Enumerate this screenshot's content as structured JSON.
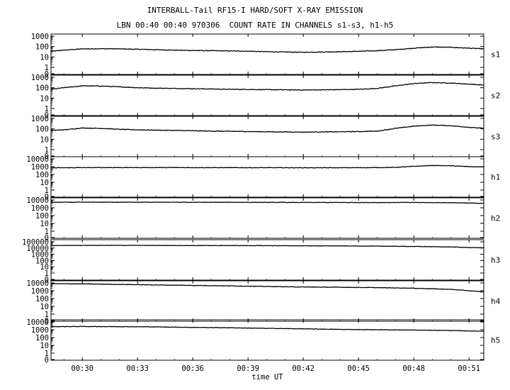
{
  "title_line1": "INTERBALL-Tail RF15-I HARD/SOFT X-RAY EMISSION",
  "title_line2": "LBN 00:40 00:40 970306  COUNT RATE IN CHANNELS s1-s3, h1-h5",
  "chart_data": {
    "type": "line",
    "xlabel": "time UT",
    "x_ticks": [
      "00:30",
      "00:33",
      "00:36",
      "00:39",
      "00:42",
      "00:45",
      "00:48",
      "00:51"
    ],
    "x_tick_minutes": [
      30,
      33,
      36,
      39,
      42,
      45,
      48,
      51
    ],
    "xlim_minutes": [
      28.3,
      51.8
    ],
    "yscale": "log",
    "grid": false,
    "panels": [
      {
        "name": "s1",
        "y_ticks": [
          "1000",
          "100",
          "10",
          "1",
          "0"
        ],
        "y_decades": 3,
        "x": [
          28.3,
          29,
          30,
          31,
          32,
          33,
          34,
          35,
          36,
          37,
          38,
          39,
          40,
          41,
          42,
          43,
          44,
          45,
          46,
          47,
          48,
          49,
          50,
          51,
          51.8
        ],
        "y": [
          35,
          45,
          60,
          62,
          60,
          55,
          50,
          45,
          42,
          40,
          38,
          36,
          32,
          30,
          28,
          30,
          32,
          35,
          40,
          50,
          70,
          90,
          85,
          70,
          60
        ]
      },
      {
        "name": "s2",
        "y_ticks": [
          "1000",
          "100",
          "10",
          "1",
          "0"
        ],
        "y_decades": 3,
        "x": [
          28.3,
          29,
          30,
          31,
          32,
          33,
          34,
          35,
          36,
          37,
          38,
          39,
          40,
          41,
          42,
          43,
          44,
          45,
          46,
          47,
          48,
          49,
          50,
          51,
          51.8
        ],
        "y": [
          70,
          100,
          150,
          145,
          120,
          100,
          90,
          85,
          80,
          75,
          70,
          68,
          65,
          62,
          60,
          62,
          65,
          70,
          85,
          150,
          250,
          310,
          280,
          220,
          180
        ]
      },
      {
        "name": "s3",
        "y_ticks": [
          "1000",
          "100",
          "10",
          "1",
          "0"
        ],
        "y_decades": 3,
        "x": [
          28.3,
          29,
          30,
          31,
          32,
          33,
          34,
          35,
          36,
          37,
          38,
          39,
          40,
          41,
          42,
          43,
          44,
          45,
          46,
          47,
          48,
          49,
          50,
          51,
          51.8
        ],
        "y": [
          70,
          80,
          120,
          110,
          90,
          80,
          75,
          70,
          65,
          60,
          58,
          55,
          52,
          50,
          48,
          50,
          52,
          55,
          60,
          110,
          180,
          230,
          200,
          140,
          110
        ]
      },
      {
        "name": "h1",
        "y_ticks": [
          "10000",
          "1000",
          "100",
          "10",
          "1",
          "0"
        ],
        "y_decades": 4,
        "x": [
          28.3,
          30,
          32,
          34,
          36,
          38,
          40,
          42,
          44,
          46,
          47,
          48,
          49,
          50,
          51,
          51.8
        ],
        "y": [
          700,
          750,
          760,
          760,
          750,
          740,
          730,
          720,
          720,
          750,
          800,
          1100,
          1400,
          1300,
          1000,
          900
        ]
      },
      {
        "name": "h2",
        "y_ticks": [
          "10000",
          "1000",
          "100",
          "10",
          "1",
          "0"
        ],
        "y_decades": 4,
        "x": [
          28.3,
          30,
          32,
          34,
          36,
          38,
          40,
          42,
          44,
          46,
          48,
          50,
          51,
          51.8
        ],
        "y": [
          5000,
          5200,
          5200,
          5100,
          5000,
          5000,
          4900,
          4800,
          4800,
          4700,
          4800,
          4500,
          4000,
          3800
        ]
      },
      {
        "name": "h3",
        "y_ticks": [
          "100000",
          "10000",
          "1000",
          "100",
          "10",
          "1",
          "0"
        ],
        "y_decades": 5,
        "x": [
          28.3,
          30,
          32,
          34,
          36,
          38,
          40,
          42,
          44,
          46,
          48,
          50,
          51,
          51.8
        ],
        "y": [
          25000,
          27000,
          27000,
          26000,
          25000,
          25000,
          24000,
          23000,
          22000,
          20000,
          18000,
          15000,
          12000,
          11000
        ]
      },
      {
        "name": "h4",
        "y_ticks": [
          "10000",
          "1000",
          "100",
          "10",
          "1",
          "0"
        ],
        "y_decades": 4,
        "x": [
          28.3,
          30,
          32,
          34,
          36,
          38,
          40,
          42,
          44,
          46,
          48,
          50,
          51,
          51.8
        ],
        "y": [
          8000,
          7500,
          6500,
          5500,
          4800,
          4200,
          3500,
          3000,
          2800,
          2500,
          2100,
          1500,
          1000,
          700
        ]
      },
      {
        "name": "h5",
        "y_ticks": [
          "10000",
          "1000",
          "100",
          "10",
          "1",
          "0"
        ],
        "y_decades": 4,
        "x": [
          28.3,
          30,
          32,
          34,
          36,
          38,
          40,
          42,
          44,
          46,
          48,
          50,
          51,
          51.8
        ],
        "y": [
          2500,
          2600,
          2500,
          2300,
          2000,
          1800,
          1500,
          1300,
          1100,
          1000,
          900,
          800,
          700,
          650
        ]
      }
    ]
  }
}
